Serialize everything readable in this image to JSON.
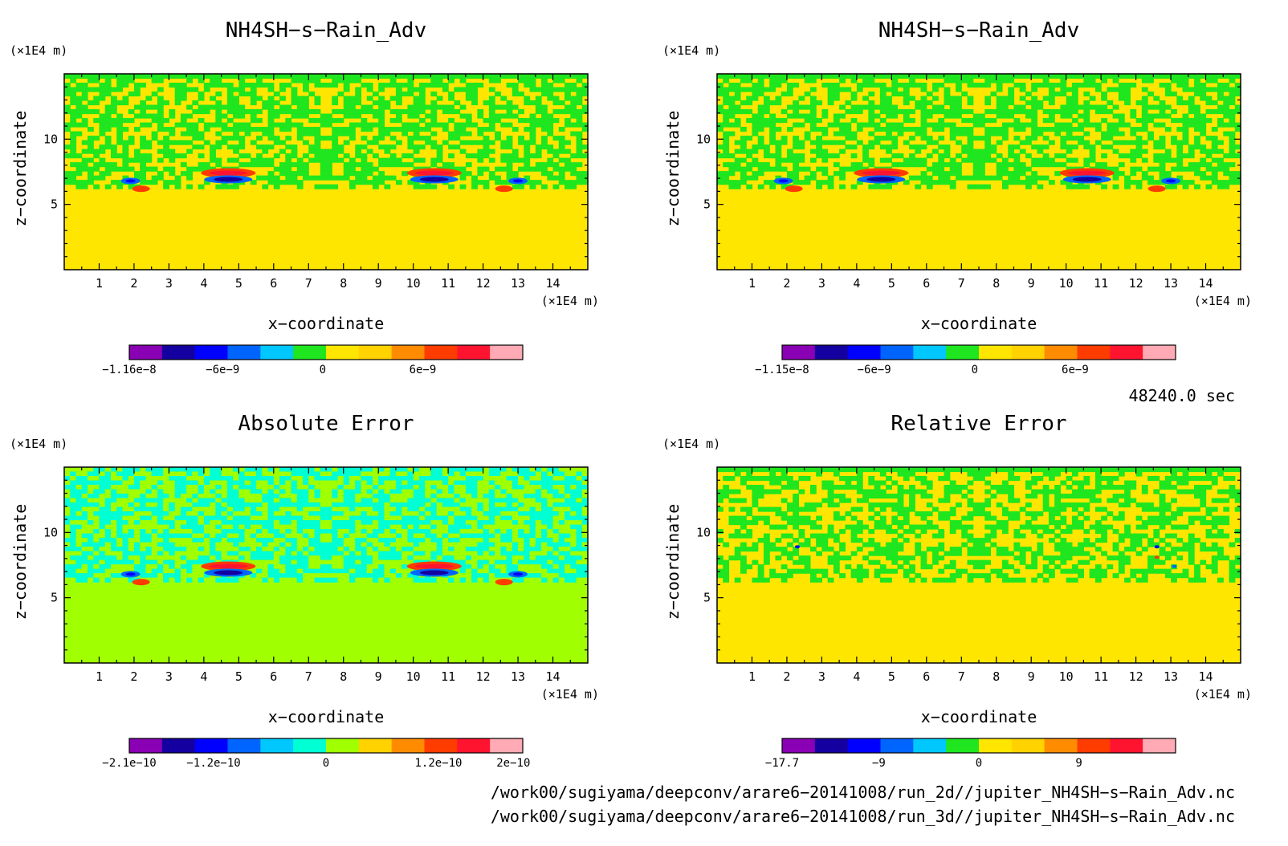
{
  "chart_data": [
    {
      "type": "heatmap",
      "title": "NH4SH−s−Rain_Adv",
      "xlabel": "x−coordinate",
      "ylabel": "z−coordinate",
      "x_unit": "(×1E4 m)",
      "z_unit": "(×1E4 m)",
      "xlim": [
        0,
        15
      ],
      "zlim": [
        0,
        15
      ],
      "x_ticks": [
        "1",
        "2",
        "3",
        "4",
        "5",
        "6",
        "7",
        "8",
        "9",
        "10",
        "11",
        "12",
        "13",
        "14"
      ],
      "z_ticks": [
        "5",
        "10"
      ],
      "colorbar": {
        "colors": [
          "#8a00b4",
          "#1400a0",
          "#0000ff",
          "#0064ff",
          "#00c8ff",
          "#1fe61f",
          "#ffe600",
          "#ffd200",
          "#ff8c00",
          "#ff3c00",
          "#ff1430",
          "#ffaab4"
        ],
        "labels": [
          {
            "text": "−1.16e−8",
            "v": -1.16e-08
          },
          {
            "text": "−6e−9",
            "v": -6e-09
          },
          {
            "text": "0",
            "v": 0
          },
          {
            "text": "6e−9",
            "v": 6e-09
          }
        ],
        "range": [
          -1.16e-08,
          1.2e-08
        ]
      }
    },
    {
      "type": "heatmap",
      "title": "NH4SH−s−Rain_Adv",
      "xlabel": "x−coordinate",
      "ylabel": "z−coordinate",
      "x_unit": "(×1E4 m)",
      "z_unit": "(×1E4 m)",
      "xlim": [
        0,
        15
      ],
      "zlim": [
        0,
        15
      ],
      "x_ticks": [
        "1",
        "2",
        "3",
        "4",
        "5",
        "6",
        "7",
        "8",
        "9",
        "10",
        "11",
        "12",
        "13",
        "14"
      ],
      "z_ticks": [
        "5",
        "10"
      ],
      "colorbar": {
        "colors": [
          "#8a00b4",
          "#1400a0",
          "#0000ff",
          "#0064ff",
          "#00c8ff",
          "#1fe61f",
          "#ffe600",
          "#ffd200",
          "#ff8c00",
          "#ff3c00",
          "#ff1430",
          "#ffaab4"
        ],
        "labels": [
          {
            "text": "−1.15e−8",
            "v": -1.15e-08
          },
          {
            "text": "−6e−9",
            "v": -6e-09
          },
          {
            "text": "0",
            "v": 0
          },
          {
            "text": "6e−9",
            "v": 6e-09
          }
        ],
        "range": [
          -1.15e-08,
          1.2e-08
        ]
      }
    },
    {
      "type": "heatmap",
      "title": "Absolute Error",
      "xlabel": "x−coordinate",
      "ylabel": "z−coordinate",
      "x_unit": "(×1E4 m)",
      "z_unit": "(×1E4 m)",
      "xlim": [
        0,
        15
      ],
      "zlim": [
        0,
        15
      ],
      "x_ticks": [
        "1",
        "2",
        "3",
        "4",
        "5",
        "6",
        "7",
        "8",
        "9",
        "10",
        "11",
        "12",
        "13",
        "14"
      ],
      "z_ticks": [
        "5",
        "10"
      ],
      "colorbar": {
        "colors": [
          "#8a00b4",
          "#1400a0",
          "#0000ff",
          "#0064ff",
          "#00c8ff",
          "#00ffd2",
          "#a0ff00",
          "#ffd200",
          "#ff8c00",
          "#ff3c00",
          "#ff1430",
          "#ffaab4"
        ],
        "labels": [
          {
            "text": "−2.1e−10",
            "v": -2.1e-10
          },
          {
            "text": "−1.2e−10",
            "v": -1.2e-10
          },
          {
            "text": "0",
            "v": 0
          },
          {
            "text": "1.2e−10",
            "v": 1.2e-10
          },
          {
            "text": "2e−10",
            "v": 2e-10
          }
        ],
        "range": [
          -2.1e-10,
          2.1e-10
        ]
      }
    },
    {
      "type": "heatmap",
      "title": "Relative Error",
      "xlabel": "x−coordinate",
      "ylabel": "z−coordinate",
      "x_unit": "(×1E4 m)",
      "z_unit": "(×1E4 m)",
      "xlim": [
        0,
        15
      ],
      "zlim": [
        0,
        15
      ],
      "x_ticks": [
        "1",
        "2",
        "3",
        "4",
        "5",
        "6",
        "7",
        "8",
        "9",
        "10",
        "11",
        "12",
        "13",
        "14"
      ],
      "z_ticks": [
        "5",
        "10"
      ],
      "colorbar": {
        "colors": [
          "#8a00b4",
          "#1400a0",
          "#0000ff",
          "#0064ff",
          "#00c8ff",
          "#1fe61f",
          "#ffe600",
          "#ffd200",
          "#ff8c00",
          "#ff3c00",
          "#ff1430",
          "#ffaab4"
        ],
        "labels": [
          {
            "text": "−17.7",
            "v": -17.7
          },
          {
            "text": "−9",
            "v": -9
          },
          {
            "text": "0",
            "v": 0
          },
          {
            "text": "9",
            "v": 9
          }
        ],
        "range": [
          -17.7,
          17.7
        ]
      }
    }
  ],
  "time_label": "48240.0 sec",
  "footer": [
    "/work00/sugiyama/deepconv/arare6−20141008/run_2d//jupiter_NH4SH−s−Rain_Adv.nc",
    "/work00/sugiyama/deepconv/arare6−20141008/run_3d//jupiter_NH4SH−s−Rain_Adv.nc"
  ]
}
